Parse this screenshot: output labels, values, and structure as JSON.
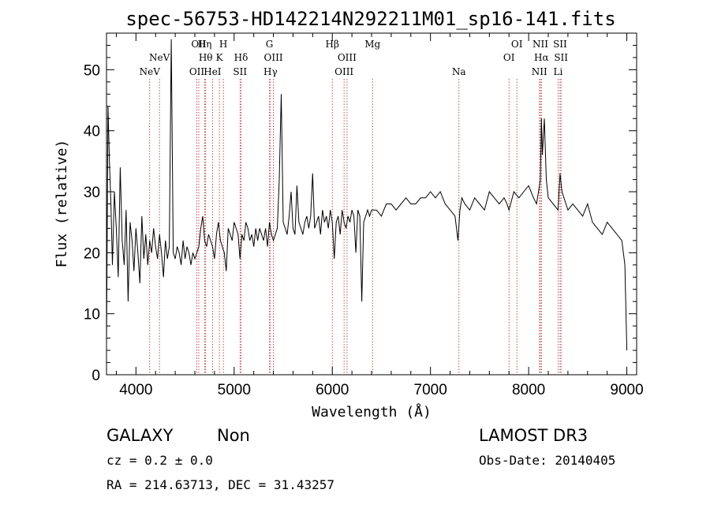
{
  "chart_data": {
    "type": "line",
    "title": "spec-56753-HD142214N292211M01_sp16-141.fits",
    "xlabel": "Wavelength (Å)",
    "ylabel": "Flux (relative)",
    "xlim": [
      3700,
      9100
    ],
    "ylim": [
      0,
      56
    ],
    "x_ticks": [
      4000,
      5000,
      6000,
      7000,
      8000,
      9000
    ],
    "y_ticks": [
      0,
      10,
      20,
      30,
      40,
      50
    ],
    "grid": false,
    "line_color": "#000000",
    "series": [
      {
        "x": [
          3700,
          3715,
          3730,
          3745,
          3760,
          3780,
          3800,
          3820,
          3840,
          3860,
          3880,
          3900,
          3920,
          3940,
          3960,
          3980,
          4000,
          4020,
          4040,
          4060,
          4080,
          4100,
          4120,
          4140,
          4160,
          4180,
          4200,
          4220,
          4240,
          4260,
          4280,
          4300,
          4320,
          4340,
          4360,
          4380,
          4400,
          4420,
          4440,
          4460,
          4480,
          4500,
          4520,
          4540,
          4560,
          4580,
          4600,
          4620,
          4640,
          4660,
          4680,
          4700,
          4720,
          4740,
          4760,
          4780,
          4800,
          4820,
          4840,
          4860,
          4880,
          4900,
          4920,
          4940,
          4960,
          4980,
          5000,
          5020,
          5040,
          5060,
          5080,
          5100,
          5120,
          5140,
          5160,
          5180,
          5200,
          5220,
          5240,
          5260,
          5280,
          5300,
          5320,
          5340,
          5360,
          5380,
          5400,
          5420,
          5440,
          5460,
          5480,
          5500,
          5520,
          5540,
          5560,
          5580,
          5600,
          5620,
          5640,
          5660,
          5680,
          5700,
          5720,
          5740,
          5760,
          5780,
          5800,
          5820,
          5840,
          5860,
          5880,
          5900,
          5920,
          5940,
          5960,
          5980,
          6000,
          6020,
          6040,
          6060,
          6080,
          6100,
          6120,
          6140,
          6160,
          6180,
          6200,
          6220,
          6240,
          6260,
          6280,
          6300,
          6320,
          6340,
          6360,
          6380,
          6400,
          6450,
          6500,
          6550,
          6600,
          6650,
          6700,
          6750,
          6800,
          6850,
          6900,
          6950,
          7000,
          7050,
          7100,
          7150,
          7200,
          7250,
          7280,
          7300,
          7320,
          7350,
          7400,
          7450,
          7500,
          7550,
          7600,
          7650,
          7700,
          7750,
          7780,
          7800,
          7850,
          7900,
          7950,
          8000,
          8050,
          8080,
          8100,
          8120,
          8130,
          8140,
          8160,
          8180,
          8200,
          8250,
          8300,
          8320,
          8340,
          8360,
          8400,
          8450,
          8500,
          8550,
          8600,
          8650,
          8700,
          8750,
          8800,
          8850,
          8900,
          8950,
          8980,
          9000
        ],
        "y": [
          5,
          44,
          35,
          28,
          18,
          30,
          24,
          16,
          34,
          22,
          18,
          27,
          12,
          25,
          22,
          17,
          24,
          20,
          15,
          26,
          19,
          23,
          18,
          22,
          20,
          24,
          21,
          19,
          23,
          20,
          16,
          22,
          19,
          21,
          55,
          20,
          19,
          21,
          20,
          18,
          22,
          19,
          21,
          20,
          18,
          20,
          19,
          20,
          21,
          24,
          26,
          22,
          21,
          23,
          22,
          21,
          19,
          23,
          25,
          22,
          21,
          20,
          17,
          24,
          23,
          22,
          25,
          24,
          23,
          19,
          23,
          22,
          25,
          24,
          22,
          23,
          21,
          24,
          22,
          24,
          23,
          22,
          24,
          21,
          25,
          23,
          22,
          23,
          24,
          32,
          46,
          25,
          24,
          23,
          26,
          30,
          24,
          23,
          31,
          25,
          24,
          23,
          25,
          26,
          24,
          26,
          33,
          24,
          25,
          26,
          23,
          27,
          25,
          26,
          24,
          27,
          25,
          19,
          25,
          26,
          23,
          27,
          25,
          24,
          26,
          25,
          27,
          26,
          20,
          27,
          26,
          12,
          25,
          26,
          27,
          26,
          27,
          27,
          26,
          28,
          28,
          27,
          28,
          29,
          28,
          28,
          29,
          29,
          30,
          29,
          30,
          28,
          27,
          26,
          22,
          27,
          29,
          28,
          27,
          29,
          28,
          27,
          30,
          29,
          28,
          29,
          28,
          27,
          30,
          29,
          30,
          31,
          29,
          28,
          30,
          32,
          42,
          36,
          42,
          32,
          29,
          28,
          27,
          33,
          30,
          29,
          27,
          28,
          27,
          26,
          28,
          25,
          24,
          23,
          25,
          24,
          23,
          22,
          18,
          4
        ]
      }
    ],
    "emission_lines": [
      {
        "x": 4140,
        "label": "NeV",
        "row": 3
      },
      {
        "x": 4240,
        "label": "NeV",
        "row": 2
      },
      {
        "x": 4620,
        "label": "OII",
        "row": 3
      },
      {
        "x": 4640,
        "label": "OII",
        "row": 1
      },
      {
        "x": 4700,
        "label": "Hη",
        "row": 1
      },
      {
        "x": 4710,
        "label": "Hθ",
        "row": 2
      },
      {
        "x": 4780,
        "label": "HeI",
        "row": 3
      },
      {
        "x": 4850,
        "label": "K",
        "row": 2
      },
      {
        "x": 4890,
        "label": "H",
        "row": 1
      },
      {
        "x": 5060,
        "label": "SII",
        "row": 3
      },
      {
        "x": 5070,
        "label": "Hδ",
        "row": 2
      },
      {
        "x": 5360,
        "label": "G",
        "row": 1
      },
      {
        "x": 5370,
        "label": "Hγ",
        "row": 3
      },
      {
        "x": 5400,
        "label": "OIII",
        "row": 2
      },
      {
        "x": 6000,
        "label": "Hβ",
        "row": 1
      },
      {
        "x": 6120,
        "label": "OIII",
        "row": 3
      },
      {
        "x": 6150,
        "label": "OIII",
        "row": 2
      },
      {
        "x": 6410,
        "label": "Mg",
        "row": 1
      },
      {
        "x": 7290,
        "label": "Na",
        "row": 3
      },
      {
        "x": 7800,
        "label": "OI",
        "row": 2
      },
      {
        "x": 7880,
        "label": "OI",
        "row": 1
      },
      {
        "x": 8110,
        "label": "NII",
        "row": 3
      },
      {
        "x": 8120,
        "label": "NII",
        "row": 1
      },
      {
        "x": 8130,
        "label": "Hα",
        "row": 2
      },
      {
        "x": 8300,
        "label": "Li",
        "row": 3
      },
      {
        "x": 8320,
        "label": "SII",
        "row": 1
      },
      {
        "x": 8330,
        "label": "SII",
        "row": 2
      }
    ],
    "emission_line_color": "#b22222"
  },
  "info": {
    "object_class": "GALAXY",
    "subclass": "Non",
    "survey": "LAMOST DR3",
    "cz": "cz = 0.2 ± 0.0",
    "obs_date": "Obs-Date: 20140405",
    "coords": "RA = 214.63713, DEC =  31.43257"
  }
}
